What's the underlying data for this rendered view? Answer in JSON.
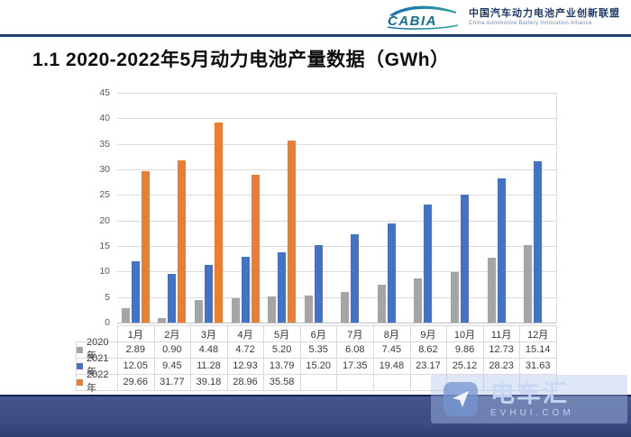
{
  "header": {
    "logo_text": "CABIA",
    "org_name_cn": "中国汽车动力电池产业创新联盟",
    "org_name_en": "China Automotive Battery Innovation Alliance"
  },
  "title": "1.1 2020-2022年5月动力电池产量数据（GWh）",
  "chart_data": {
    "type": "bar",
    "title": "2020-2022年5月动力电池产量数据（GWh）",
    "categories": [
      "1月",
      "2月",
      "3月",
      "4月",
      "5月",
      "6月",
      "7月",
      "8月",
      "9月",
      "10月",
      "11月",
      "12月"
    ],
    "series": [
      {
        "name": "2020年",
        "color": "#a5a5a5",
        "values": [
          2.89,
          0.9,
          4.48,
          4.72,
          5.2,
          5.35,
          6.08,
          7.45,
          8.62,
          9.86,
          12.73,
          15.14
        ]
      },
      {
        "name": "2021年",
        "color": "#4472c4",
        "values": [
          12.05,
          9.45,
          11.28,
          12.93,
          13.79,
          15.2,
          17.35,
          19.48,
          23.17,
          25.12,
          28.23,
          31.63
        ]
      },
      {
        "name": "2022年",
        "color": "#ed7d31",
        "values": [
          29.66,
          31.77,
          39.18,
          28.96,
          35.58,
          null,
          null,
          null,
          null,
          null,
          null,
          null
        ]
      }
    ],
    "xlabel": "",
    "ylabel": "",
    "ylim": [
      0,
      45
    ],
    "ytick_step": 5,
    "grid": true,
    "legend_position": "data-table-left"
  },
  "table": {
    "corner": "",
    "columns": [
      "1月",
      "2月",
      "3月",
      "4月",
      "5月",
      "6月",
      "7月",
      "8月",
      "9月",
      "10月",
      "11月",
      "12月"
    ],
    "rows": [
      {
        "label": "2020年",
        "swatch_color": "#a5a5a5",
        "values": [
          "2.89",
          "0.90",
          "4.48",
          "4.72",
          "5.20",
          "5.35",
          "6.08",
          "7.45",
          "8.62",
          "9.86",
          "12.73",
          "15.14"
        ]
      },
      {
        "label": "2021年",
        "swatch_color": "#4472c4",
        "values": [
          "12.05",
          "9.45",
          "11.28",
          "12.93",
          "13.79",
          "15.20",
          "17.35",
          "19.48",
          "23.17",
          "25.12",
          "28.23",
          "31.63"
        ]
      },
      {
        "label": "2022年",
        "swatch_color": "#ed7d31",
        "values": [
          "29.66",
          "31.77",
          "39.18",
          "28.96",
          "35.58",
          "",
          "",
          "",
          "",
          "",
          "",
          ""
        ]
      }
    ]
  },
  "watermark": {
    "brand": "电车汇",
    "domain": "EVHUI.COM"
  },
  "colors": {
    "series_2020": "#a5a5a5",
    "series_2021": "#4472c4",
    "series_2022": "#ed7d31",
    "top_rule": "#17365d",
    "bottom_bar": "#3d4d83",
    "gridline": "#dadada",
    "axis_text": "#595959",
    "logo_teal": "#1c7f9c",
    "org_navy": "#1d3a66"
  }
}
